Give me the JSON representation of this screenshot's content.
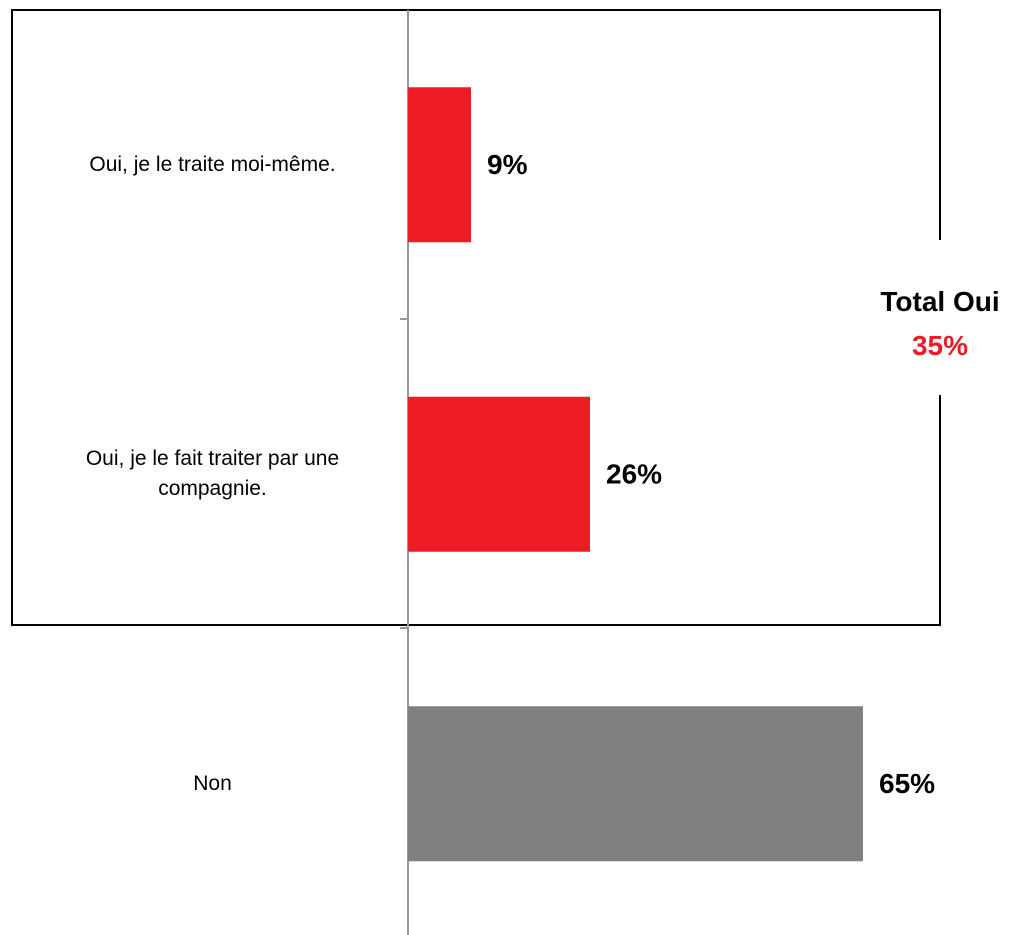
{
  "chart_data": {
    "type": "hbar",
    "categories": [
      "Oui, je le traite moi-même.",
      "Oui, je le fait traiter par une compagnie.",
      "Non"
    ],
    "values": [
      9,
      26,
      65
    ],
    "value_labels": [
      "9%",
      "26%",
      "65%"
    ],
    "colors": [
      "#ed1c24",
      "#ed1c24",
      "#808080"
    ],
    "annotation": {
      "title": "Total Oui",
      "total": "35%",
      "total_color": "#ed1c24"
    }
  }
}
